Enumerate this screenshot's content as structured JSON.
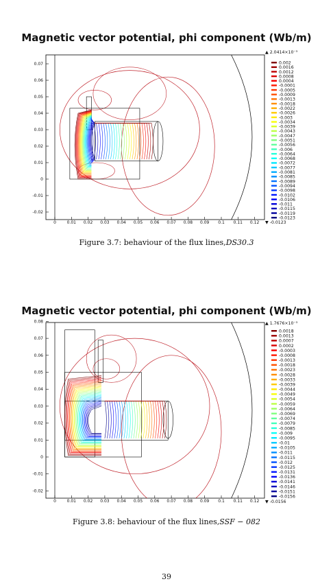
{
  "figures": [
    {
      "title": "Magnetic vector potential, phi component (Wb/m)",
      "caption_text": "Figure 3.7: behaviour of the flux lines,",
      "caption_math": "DS30.3",
      "chart_data": {
        "type": "contour",
        "x_ticks": [
          "0",
          "0.01",
          "0.02",
          "0.03",
          "0.04",
          "0.05",
          "0.06",
          "0.07",
          "0.08",
          "0.09",
          "0.1",
          "0.11",
          "0.12"
        ],
        "y_ticks": [
          "0.07",
          "0.06",
          "0.05",
          "0.04",
          "0.03",
          "0.02",
          "0.01",
          "0",
          "-0.01",
          "-0.02"
        ],
        "colorbar_max": "▲ 2.0414×10⁻³",
        "colorbar_min": "▼ -0.0123",
        "levels": [
          "0.002",
          "0.0016",
          "0.0012",
          "0.0008",
          "0.0004",
          "-0.0001",
          "-0.0005",
          "-0.0009",
          "-0.0013",
          "-0.0018",
          "-0.0022",
          "-0.0026",
          "-0.003",
          "-0.0034",
          "-0.0039",
          "-0.0043",
          "-0.0047",
          "-0.0051",
          "-0.0056",
          "-0.006",
          "-0.0064",
          "-0.0068",
          "-0.0072",
          "-0.0077",
          "-0.0081",
          "-0.0085",
          "-0.0089",
          "-0.0094",
          "-0.0098",
          "-0.0102",
          "-0.0106",
          "-0.011",
          "-0.0115",
          "-0.0119",
          "-0.0123"
        ]
      }
    },
    {
      "title": "Magnetic vector potential, phi component (Wb/m)",
      "caption_text": "Figure 3.8: behaviour of the flux lines,",
      "caption_math": "SSF − 082",
      "chart_data": {
        "type": "contour",
        "x_ticks": [
          "0",
          "0.01",
          "0.02",
          "0.03",
          "0.04",
          "0.05",
          "0.06",
          "0.07",
          "0.08",
          "0.09",
          "0.1",
          "0.11",
          "0.12"
        ],
        "y_ticks": [
          "0.08",
          "0.07",
          "0.06",
          "0.05",
          "0.04",
          "0.03",
          "0.02",
          "0.01",
          "0",
          "-0.01",
          "-0.02"
        ],
        "colorbar_max": "▲ 1.7676×10⁻³",
        "colorbar_min": "▼ -0.0156",
        "levels": [
          "0.0018",
          "0.0013",
          "0.0007",
          "0.0002",
          "-0.0003",
          "-0.0008",
          "-0.0013",
          "-0.0018",
          "-0.0023",
          "-0.0028",
          "-0.0033",
          "-0.0039",
          "-0.0044",
          "-0.0049",
          "-0.0054",
          "-0.0059",
          "-0.0064",
          "-0.0069",
          "-0.0074",
          "-0.0079",
          "-0.0085",
          "-0.009",
          "-0.0095",
          "-0.01",
          "-0.0105",
          "-0.011",
          "-0.0115",
          "-0.012",
          "-0.0125",
          "-0.0131",
          "-0.0136",
          "-0.0141",
          "-0.0146",
          "-0.0151",
          "-0.0156"
        ]
      }
    }
  ],
  "page_number": "39"
}
